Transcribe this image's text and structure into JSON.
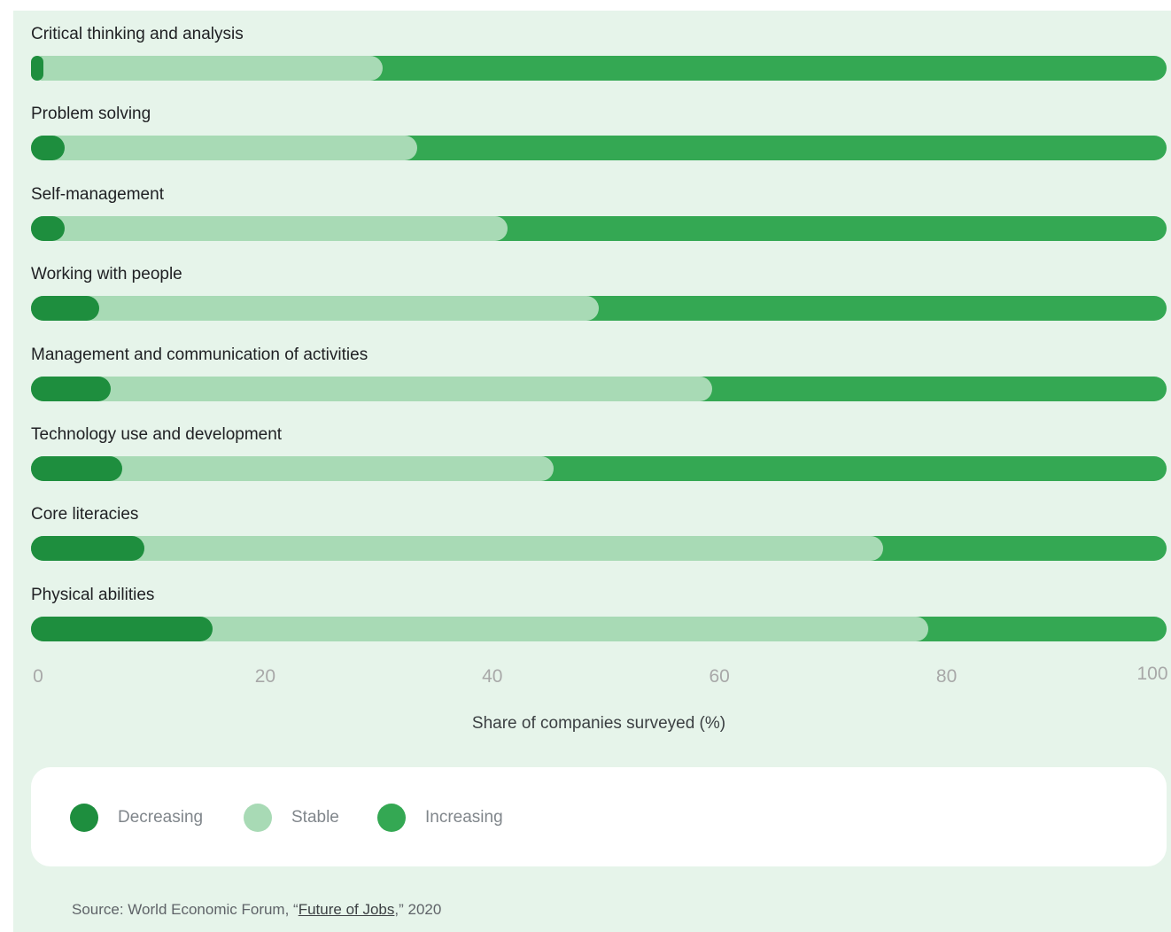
{
  "colors": {
    "decreasing": "#1e8e3e",
    "stable": "#a8dab5",
    "increasing": "#34a853",
    "background": "#e6f4ea"
  },
  "chart_data": {
    "type": "bar",
    "orientation": "horizontal",
    "stacked": true,
    "categories": [
      "Critical thinking and analysis",
      "Problem solving",
      "Self-management",
      "Working with people",
      "Management and communication of activities",
      "Technology use and development",
      "Core literacies",
      "Physical abilities"
    ],
    "series": [
      {
        "name": "Decreasing",
        "values": [
          1,
          3,
          3,
          6,
          7,
          8,
          10,
          16
        ]
      },
      {
        "name": "Stable",
        "values": [
          30,
          31,
          39,
          44,
          53,
          38,
          65,
          63
        ]
      },
      {
        "name": "Increasing",
        "values": [
          69,
          66,
          58,
          50,
          40,
          54,
          25,
          21
        ]
      }
    ],
    "xlabel": "Share of companies surveyed (%)",
    "ylabel": "",
    "xlim": [
      0,
      100
    ],
    "ticks": [
      "0",
      "20",
      "40",
      "60",
      "80",
      "100"
    ],
    "grid": false,
    "legend_position": "bottom-left"
  },
  "source": {
    "prefix": "Source: World Economic Forum, “",
    "link_text": "Future of Jobs",
    "suffix": ",” 2020"
  }
}
